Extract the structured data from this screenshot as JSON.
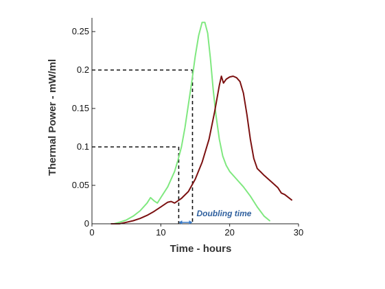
{
  "chart_data": {
    "type": "line",
    "title": "",
    "xlabel": "Time - hours",
    "ylabel": "Thermal Power  - mW/ml",
    "xlim": [
      0,
      30
    ],
    "ylim": [
      0,
      0.25
    ],
    "x_ticks": [
      {
        "value": 0,
        "label": "0"
      },
      {
        "value": 10,
        "label": "10"
      },
      {
        "value": 20,
        "label": "20"
      },
      {
        "value": 30,
        "label": "30"
      }
    ],
    "y_ticks": [
      {
        "value": 0,
        "label": "0"
      },
      {
        "value": 0.05,
        "label": "0.05"
      },
      {
        "value": 0.1,
        "label": "0.1"
      },
      {
        "value": 0.15,
        "label": "0.15"
      },
      {
        "value": 0.2,
        "label": "0.2"
      },
      {
        "value": 0.25,
        "label": "0.25"
      }
    ],
    "grid": false,
    "series": [
      {
        "color": "#7fe87f",
        "points": [
          [
            3.2,
            0.0
          ],
          [
            4,
            0.002
          ],
          [
            5,
            0.005
          ],
          [
            6,
            0.01
          ],
          [
            7,
            0.017
          ],
          [
            8,
            0.027
          ],
          [
            8.5,
            0.034
          ],
          [
            9,
            0.03
          ],
          [
            9.5,
            0.027
          ],
          [
            10,
            0.034
          ],
          [
            11,
            0.048
          ],
          [
            12,
            0.068
          ],
          [
            12.5,
            0.083
          ],
          [
            13,
            0.1
          ],
          [
            13.5,
            0.125
          ],
          [
            14,
            0.155
          ],
          [
            14.5,
            0.185
          ],
          [
            15,
            0.218
          ],
          [
            15.5,
            0.245
          ],
          [
            16,
            0.262
          ],
          [
            16.4,
            0.262
          ],
          [
            16.8,
            0.248
          ],
          [
            17.2,
            0.215
          ],
          [
            17.6,
            0.175
          ],
          [
            18,
            0.142
          ],
          [
            18.5,
            0.11
          ],
          [
            19,
            0.088
          ],
          [
            19.5,
            0.076
          ],
          [
            20,
            0.068
          ],
          [
            21,
            0.058
          ],
          [
            22,
            0.048
          ],
          [
            23,
            0.036
          ],
          [
            24,
            0.022
          ],
          [
            25,
            0.01
          ],
          [
            25.8,
            0.004
          ]
        ]
      },
      {
        "color": "#7b1010",
        "points": [
          [
            2.8,
            0.0
          ],
          [
            4,
            0.0
          ],
          [
            5,
            0.002
          ],
          [
            6,
            0.004
          ],
          [
            7,
            0.007
          ],
          [
            8,
            0.011
          ],
          [
            9,
            0.016
          ],
          [
            10,
            0.022
          ],
          [
            11,
            0.028
          ],
          [
            11.5,
            0.029
          ],
          [
            12,
            0.027
          ],
          [
            12.5,
            0.03
          ],
          [
            13,
            0.033
          ],
          [
            14,
            0.042
          ],
          [
            15,
            0.058
          ],
          [
            16,
            0.08
          ],
          [
            17,
            0.11
          ],
          [
            17.8,
            0.145
          ],
          [
            18.5,
            0.18
          ],
          [
            18.8,
            0.192
          ],
          [
            19.1,
            0.183
          ],
          [
            19.5,
            0.188
          ],
          [
            20,
            0.191
          ],
          [
            20.5,
            0.192
          ],
          [
            21,
            0.19
          ],
          [
            21.5,
            0.185
          ],
          [
            22,
            0.17
          ],
          [
            22.5,
            0.142
          ],
          [
            23,
            0.11
          ],
          [
            23.5,
            0.085
          ],
          [
            24,
            0.072
          ],
          [
            25,
            0.063
          ],
          [
            26,
            0.055
          ],
          [
            27,
            0.047
          ],
          [
            27.5,
            0.04
          ],
          [
            28,
            0.038
          ],
          [
            29,
            0.031
          ]
        ]
      }
    ],
    "reference_lines": [
      {
        "level": 0.1,
        "at_x": 12.6
      },
      {
        "level": 0.2,
        "at_x": 14.6
      }
    ],
    "annotations": [
      {
        "text": "Doubling time",
        "from_x": 12.6,
        "to_x": 14.6
      }
    ]
  }
}
